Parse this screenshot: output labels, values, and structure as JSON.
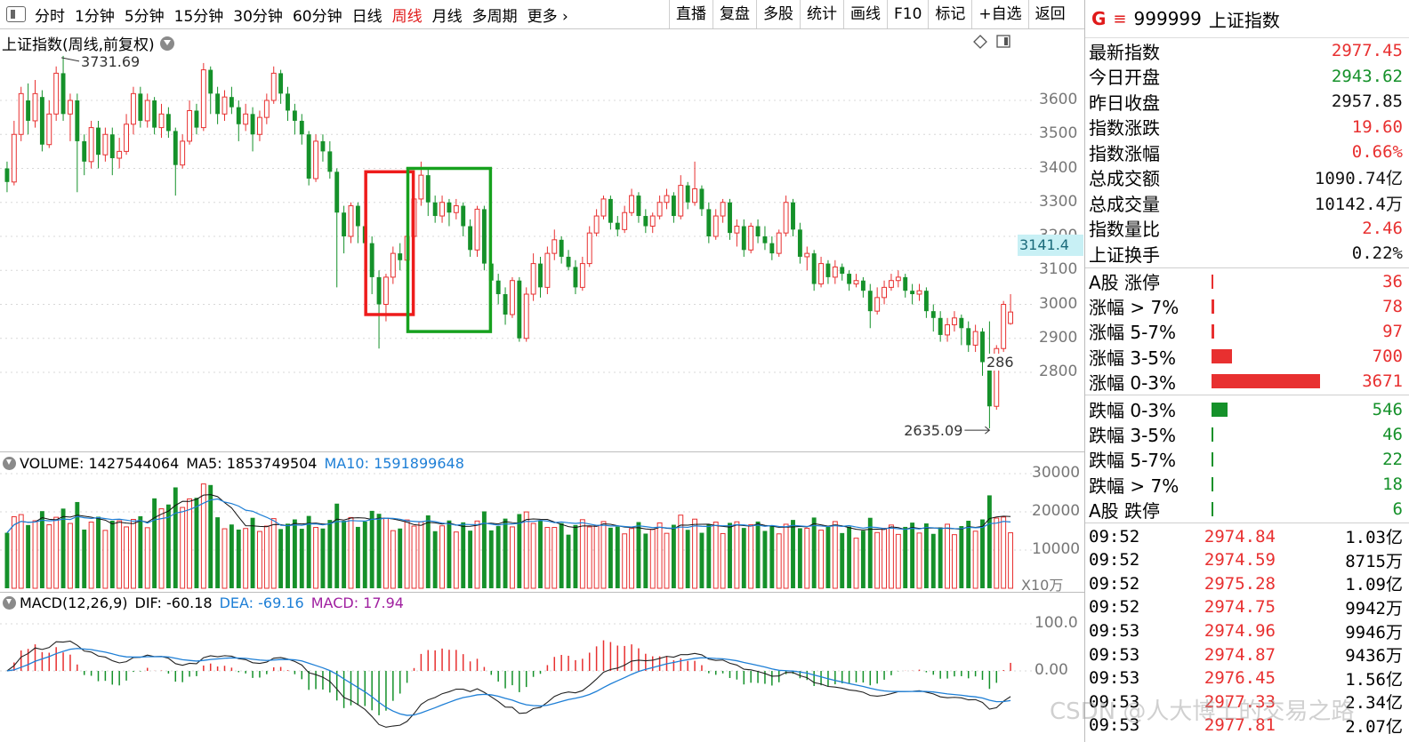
{
  "toolbar": {
    "periods": [
      "分时",
      "1分钟",
      "5分钟",
      "15分钟",
      "30分钟",
      "60分钟",
      "日线",
      "周线",
      "月线",
      "多周期",
      "更多"
    ],
    "active_period": "周线",
    "buttons": [
      "直播",
      "复盘",
      "多股",
      "统计",
      "画线",
      "F10",
      "标记",
      "+自选",
      "返回"
    ]
  },
  "chart_title": "上证指数(周线,前复权)",
  "price_axis": {
    "ticks": [
      "3600",
      "3500",
      "3400",
      "3300",
      "3200",
      "3100",
      "3000",
      "2900",
      "2800"
    ]
  },
  "current_price_tag": "3141.4",
  "partial_price_label": "286",
  "high_marker": "3731.69",
  "low_marker": "2635.09",
  "volume_header": {
    "volume_label": "VOLUME: 1427544064",
    "ma5_label": "MA5: 1853749504",
    "ma10_label": "MA10: 1591899648"
  },
  "volume_axis": {
    "ticks": [
      "30000",
      "20000",
      "10000"
    ],
    "unit": "X10万"
  },
  "macd_header": {
    "params": "MACD(12,26,9)",
    "dif": "DIF: -60.18",
    "dea": "DEA: -69.16",
    "macd": "MACD: 17.94"
  },
  "macd_axis": {
    "ticks": [
      "100.0",
      "0.00"
    ]
  },
  "quote": {
    "header": {
      "g_label": "G",
      "code": "999999",
      "name": "上证指数"
    },
    "rows": [
      {
        "label": "最新指数",
        "value": "2977.45",
        "color": "#e83030"
      },
      {
        "label": "今日开盘",
        "value": "2943.62",
        "color": "#15912a"
      },
      {
        "label": "昨日收盘",
        "value": "2957.85",
        "color": "#111111"
      },
      {
        "label": "指数涨跌",
        "value": "19.60",
        "color": "#e83030"
      },
      {
        "label": "指数涨幅",
        "value": "0.66%",
        "color": "#e83030"
      },
      {
        "label": "总成交额",
        "value": "1090.74亿",
        "color": "#111111"
      },
      {
        "label": "总成交量",
        "value": "10142.4万",
        "color": "#111111"
      },
      {
        "label": "指数量比",
        "value": "2.46",
        "color": "#e83030"
      },
      {
        "label": "上证换手",
        "value": "0.22%",
        "color": "#111111"
      }
    ]
  },
  "breadth_up": [
    {
      "label": "A股 涨停",
      "value": "36",
      "share": 0.01
    },
    {
      "label": "涨幅 > 7%",
      "value": "78",
      "share": 0.021
    },
    {
      "label": "涨幅 5-7%",
      "value": "97",
      "share": 0.026
    },
    {
      "label": "涨幅 3-5%",
      "value": "700",
      "share": 0.19
    },
    {
      "label": "涨幅 0-3%",
      "value": "3671",
      "share": 1.0
    }
  ],
  "breadth_down": [
    {
      "label": "跌幅 0-3%",
      "value": "546",
      "share": 0.149
    },
    {
      "label": "跌幅 3-5%",
      "value": "46",
      "share": 0.013
    },
    {
      "label": "跌幅 5-7%",
      "value": "22",
      "share": 0.006
    },
    {
      "label": "跌幅 > 7%",
      "value": "18",
      "share": 0.005
    },
    {
      "label": "A股 跌停",
      "value": "6",
      "share": 0.002
    }
  ],
  "ticks": [
    {
      "time": "09:52",
      "price": "2974.84",
      "vol": "1.03亿"
    },
    {
      "time": "09:52",
      "price": "2974.59",
      "vol": "8715万"
    },
    {
      "time": "09:52",
      "price": "2975.28",
      "vol": "1.09亿"
    },
    {
      "time": "09:52",
      "price": "2974.75",
      "vol": "9942万"
    },
    {
      "time": "09:53",
      "price": "2974.96",
      "vol": "9946万"
    },
    {
      "time": "09:53",
      "price": "2974.87",
      "vol": "9436万"
    },
    {
      "time": "09:53",
      "price": "2976.45",
      "vol": "1.56亿"
    },
    {
      "time": "09:53",
      "price": "2977.33",
      "vol": "2.34亿"
    },
    {
      "time": "09:53",
      "price": "2977.81",
      "vol": "2.07亿"
    }
  ],
  "watermark": "CSDN @人大博士的交易之路",
  "colors": {
    "up": "#e83030",
    "down": "#15912a",
    "ma5": "#111111",
    "ma10": "#1e7fd6",
    "highlight_red": "#ee1c1c",
    "highlight_green": "#17a11e"
  },
  "chart_data": {
    "type": "candlestick",
    "y_range": [
      2635.09,
      3731.69
    ],
    "candles": [
      {
        "o": 3400,
        "c": 3360,
        "h": 3420,
        "l": 3330
      },
      {
        "o": 3360,
        "c": 3500,
        "h": 3540,
        "l": 3350
      },
      {
        "o": 3500,
        "c": 3620,
        "h": 3640,
        "l": 3480
      },
      {
        "o": 3600,
        "c": 3540,
        "h": 3650,
        "l": 3500
      },
      {
        "o": 3540,
        "c": 3620,
        "h": 3660,
        "l": 3520
      },
      {
        "o": 3610,
        "c": 3470,
        "h": 3630,
        "l": 3450
      },
      {
        "o": 3470,
        "c": 3560,
        "h": 3600,
        "l": 3460
      },
      {
        "o": 3560,
        "c": 3680,
        "h": 3700,
        "l": 3540
      },
      {
        "o": 3680,
        "c": 3560,
        "h": 3731,
        "l": 3540
      },
      {
        "o": 3560,
        "c": 3600,
        "h": 3620,
        "l": 3480
      },
      {
        "o": 3600,
        "c": 3480,
        "h": 3620,
        "l": 3330
      },
      {
        "o": 3480,
        "c": 3420,
        "h": 3500,
        "l": 3380
      },
      {
        "o": 3420,
        "c": 3520,
        "h": 3540,
        "l": 3400
      },
      {
        "o": 3520,
        "c": 3440,
        "h": 3540,
        "l": 3400
      },
      {
        "o": 3440,
        "c": 3500,
        "h": 3520,
        "l": 3420
      },
      {
        "o": 3500,
        "c": 3430,
        "h": 3520,
        "l": 3380
      },
      {
        "o": 3430,
        "c": 3450,
        "h": 3490,
        "l": 3400
      },
      {
        "o": 3450,
        "c": 3530,
        "h": 3560,
        "l": 3440
      },
      {
        "o": 3530,
        "c": 3620,
        "h": 3640,
        "l": 3500
      },
      {
        "o": 3620,
        "c": 3540,
        "h": 3640,
        "l": 3520
      },
      {
        "o": 3540,
        "c": 3600,
        "h": 3620,
        "l": 3520
      },
      {
        "o": 3600,
        "c": 3520,
        "h": 3610,
        "l": 3500
      },
      {
        "o": 3520,
        "c": 3560,
        "h": 3590,
        "l": 3490
      },
      {
        "o": 3560,
        "c": 3510,
        "h": 3580,
        "l": 3490
      },
      {
        "o": 3510,
        "c": 3410,
        "h": 3520,
        "l": 3320
      },
      {
        "o": 3410,
        "c": 3480,
        "h": 3500,
        "l": 3400
      },
      {
        "o": 3480,
        "c": 3570,
        "h": 3600,
        "l": 3470
      },
      {
        "o": 3570,
        "c": 3520,
        "h": 3590,
        "l": 3500
      },
      {
        "o": 3520,
        "c": 3690,
        "h": 3710,
        "l": 3510
      },
      {
        "o": 3690,
        "c": 3620,
        "h": 3700,
        "l": 3560
      },
      {
        "o": 3620,
        "c": 3560,
        "h": 3640,
        "l": 3530
      },
      {
        "o": 3560,
        "c": 3610,
        "h": 3630,
        "l": 3540
      },
      {
        "o": 3610,
        "c": 3580,
        "h": 3640,
        "l": 3560
      },
      {
        "o": 3580,
        "c": 3530,
        "h": 3600,
        "l": 3480
      },
      {
        "o": 3530,
        "c": 3560,
        "h": 3590,
        "l": 3510
      },
      {
        "o": 3560,
        "c": 3500,
        "h": 3580,
        "l": 3450
      },
      {
        "o": 3500,
        "c": 3550,
        "h": 3570,
        "l": 3480
      },
      {
        "o": 3550,
        "c": 3600,
        "h": 3620,
        "l": 3530
      },
      {
        "o": 3600,
        "c": 3680,
        "h": 3700,
        "l": 3590
      },
      {
        "o": 3680,
        "c": 3620,
        "h": 3690,
        "l": 3590
      },
      {
        "o": 3620,
        "c": 3570,
        "h": 3640,
        "l": 3540
      },
      {
        "o": 3570,
        "c": 3540,
        "h": 3590,
        "l": 3500
      },
      {
        "o": 3540,
        "c": 3500,
        "h": 3560,
        "l": 3470
      },
      {
        "o": 3500,
        "c": 3370,
        "h": 3510,
        "l": 3350
      },
      {
        "o": 3370,
        "c": 3480,
        "h": 3500,
        "l": 3360
      },
      {
        "o": 3480,
        "c": 3450,
        "h": 3500,
        "l": 3420
      },
      {
        "o": 3450,
        "c": 3390,
        "h": 3480,
        "l": 3370
      },
      {
        "o": 3390,
        "c": 3270,
        "h": 3400,
        "l": 3050
      },
      {
        "o": 3270,
        "c": 3200,
        "h": 3290,
        "l": 3150
      },
      {
        "o": 3200,
        "c": 3290,
        "h": 3300,
        "l": 3180
      },
      {
        "o": 3290,
        "c": 3230,
        "h": 3300,
        "l": 3180
      },
      {
        "o": 3230,
        "c": 3180,
        "h": 3270,
        "l": 3150
      },
      {
        "o": 3180,
        "c": 3080,
        "h": 3200,
        "l": 3030
      },
      {
        "o": 3080,
        "c": 3000,
        "h": 3100,
        "l": 2870
      },
      {
        "o": 3000,
        "c": 3080,
        "h": 3090,
        "l": 2950
      },
      {
        "o": 3080,
        "c": 3150,
        "h": 3170,
        "l": 3060
      },
      {
        "o": 3150,
        "c": 3130,
        "h": 3180,
        "l": 3100
      },
      {
        "o": 3130,
        "c": 3200,
        "h": 3220,
        "l": 3110
      },
      {
        "o": 3200,
        "c": 3310,
        "h": 3330,
        "l": 3190
      },
      {
        "o": 3310,
        "c": 3380,
        "h": 3420,
        "l": 3290
      },
      {
        "o": 3380,
        "c": 3300,
        "h": 3400,
        "l": 3260
      },
      {
        "o": 3300,
        "c": 3260,
        "h": 3320,
        "l": 3240
      },
      {
        "o": 3260,
        "c": 3300,
        "h": 3320,
        "l": 3240
      },
      {
        "o": 3300,
        "c": 3270,
        "h": 3310,
        "l": 3230
      },
      {
        "o": 3270,
        "c": 3290,
        "h": 3310,
        "l": 3250
      },
      {
        "o": 3290,
        "c": 3230,
        "h": 3300,
        "l": 3200
      },
      {
        "o": 3230,
        "c": 3160,
        "h": 3250,
        "l": 3140
      },
      {
        "o": 3160,
        "c": 3280,
        "h": 3290,
        "l": 3140
      },
      {
        "o": 3280,
        "c": 3120,
        "h": 3290,
        "l": 3100
      },
      {
        "o": 3120,
        "c": 3070,
        "h": 3140,
        "l": 3040
      },
      {
        "o": 3070,
        "c": 3030,
        "h": 3090,
        "l": 3000
      },
      {
        "o": 3030,
        "c": 2970,
        "h": 3050,
        "l": 2940
      },
      {
        "o": 2970,
        "c": 3070,
        "h": 3080,
        "l": 2960
      },
      {
        "o": 3070,
        "c": 2900,
        "h": 3080,
        "l": 2890
      },
      {
        "o": 2900,
        "c": 3030,
        "h": 3050,
        "l": 2890
      },
      {
        "o": 3030,
        "c": 3120,
        "h": 3150,
        "l": 3010
      },
      {
        "o": 3120,
        "c": 3050,
        "h": 3140,
        "l": 3020
      },
      {
        "o": 3050,
        "c": 3150,
        "h": 3170,
        "l": 3030
      },
      {
        "o": 3150,
        "c": 3190,
        "h": 3220,
        "l": 3130
      },
      {
        "o": 3190,
        "c": 3140,
        "h": 3200,
        "l": 3120
      },
      {
        "o": 3140,
        "c": 3110,
        "h": 3160,
        "l": 3100
      },
      {
        "o": 3110,
        "c": 3050,
        "h": 3130,
        "l": 3030
      },
      {
        "o": 3050,
        "c": 3120,
        "h": 3140,
        "l": 3040
      },
      {
        "o": 3120,
        "c": 3210,
        "h": 3230,
        "l": 3110
      },
      {
        "o": 3210,
        "c": 3260,
        "h": 3280,
        "l": 3200
      },
      {
        "o": 3260,
        "c": 3310,
        "h": 3320,
        "l": 3250
      },
      {
        "o": 3310,
        "c": 3240,
        "h": 3320,
        "l": 3220
      },
      {
        "o": 3240,
        "c": 3220,
        "h": 3260,
        "l": 3200
      },
      {
        "o": 3220,
        "c": 3270,
        "h": 3290,
        "l": 3210
      },
      {
        "o": 3270,
        "c": 3320,
        "h": 3340,
        "l": 3260
      },
      {
        "o": 3320,
        "c": 3260,
        "h": 3330,
        "l": 3240
      },
      {
        "o": 3260,
        "c": 3230,
        "h": 3280,
        "l": 3210
      },
      {
        "o": 3230,
        "c": 3260,
        "h": 3270,
        "l": 3210
      },
      {
        "o": 3260,
        "c": 3300,
        "h": 3320,
        "l": 3250
      },
      {
        "o": 3300,
        "c": 3320,
        "h": 3340,
        "l": 3280
      },
      {
        "o": 3320,
        "c": 3260,
        "h": 3330,
        "l": 3240
      },
      {
        "o": 3260,
        "c": 3350,
        "h": 3380,
        "l": 3250
      },
      {
        "o": 3350,
        "c": 3300,
        "h": 3360,
        "l": 3280
      },
      {
        "o": 3300,
        "c": 3340,
        "h": 3420,
        "l": 3290
      },
      {
        "o": 3340,
        "c": 3280,
        "h": 3350,
        "l": 3260
      },
      {
        "o": 3280,
        "c": 3200,
        "h": 3300,
        "l": 3180
      },
      {
        "o": 3200,
        "c": 3260,
        "h": 3280,
        "l": 3190
      },
      {
        "o": 3260,
        "c": 3300,
        "h": 3310,
        "l": 3240
      },
      {
        "o": 3300,
        "c": 3210,
        "h": 3310,
        "l": 3190
      },
      {
        "o": 3210,
        "c": 3230,
        "h": 3250,
        "l": 3170
      },
      {
        "o": 3230,
        "c": 3160,
        "h": 3250,
        "l": 3140
      },
      {
        "o": 3160,
        "c": 3230,
        "h": 3240,
        "l": 3150
      },
      {
        "o": 3230,
        "c": 3200,
        "h": 3250,
        "l": 3180
      },
      {
        "o": 3200,
        "c": 3180,
        "h": 3230,
        "l": 3160
      },
      {
        "o": 3180,
        "c": 3150,
        "h": 3200,
        "l": 3130
      },
      {
        "o": 3150,
        "c": 3210,
        "h": 3220,
        "l": 3140
      },
      {
        "o": 3210,
        "c": 3300,
        "h": 3320,
        "l": 3200
      },
      {
        "o": 3300,
        "c": 3220,
        "h": 3310,
        "l": 3200
      },
      {
        "o": 3220,
        "c": 3140,
        "h": 3240,
        "l": 3120
      },
      {
        "o": 3140,
        "c": 3150,
        "h": 3170,
        "l": 3100
      },
      {
        "o": 3150,
        "c": 3060,
        "h": 3160,
        "l": 3040
      },
      {
        "o": 3060,
        "c": 3120,
        "h": 3140,
        "l": 3050
      },
      {
        "o": 3120,
        "c": 3080,
        "h": 3130,
        "l": 3060
      },
      {
        "o": 3080,
        "c": 3110,
        "h": 3130,
        "l": 3060
      },
      {
        "o": 3110,
        "c": 3090,
        "h": 3120,
        "l": 3070
      },
      {
        "o": 3090,
        "c": 3060,
        "h": 3100,
        "l": 3040
      },
      {
        "o": 3060,
        "c": 3070,
        "h": 3090,
        "l": 3050
      },
      {
        "o": 3070,
        "c": 3040,
        "h": 3080,
        "l": 3020
      },
      {
        "o": 3040,
        "c": 2980,
        "h": 3060,
        "l": 2930
      },
      {
        "o": 2980,
        "c": 3020,
        "h": 3050,
        "l": 2970
      },
      {
        "o": 3020,
        "c": 3050,
        "h": 3070,
        "l": 3000
      },
      {
        "o": 3050,
        "c": 3070,
        "h": 3090,
        "l": 3040
      },
      {
        "o": 3070,
        "c": 3080,
        "h": 3100,
        "l": 3050
      },
      {
        "o": 3080,
        "c": 3040,
        "h": 3090,
        "l": 3020
      },
      {
        "o": 3040,
        "c": 3030,
        "h": 3060,
        "l": 3000
      },
      {
        "o": 3030,
        "c": 3040,
        "h": 3060,
        "l": 3010
      },
      {
        "o": 3040,
        "c": 2980,
        "h": 3050,
        "l": 2960
      },
      {
        "o": 2980,
        "c": 2960,
        "h": 3000,
        "l": 2920
      },
      {
        "o": 2960,
        "c": 2910,
        "h": 2980,
        "l": 2890
      },
      {
        "o": 2910,
        "c": 2940,
        "h": 2960,
        "l": 2890
      },
      {
        "o": 2940,
        "c": 2960,
        "h": 2980,
        "l": 2920
      },
      {
        "o": 2960,
        "c": 2930,
        "h": 2970,
        "l": 2880
      },
      {
        "o": 2930,
        "c": 2880,
        "h": 2950,
        "l": 2860
      },
      {
        "o": 2880,
        "c": 2920,
        "h": 2940,
        "l": 2860
      },
      {
        "o": 2920,
        "c": 2830,
        "h": 2930,
        "l": 2790
      },
      {
        "o": 2830,
        "c": 2700,
        "h": 2950,
        "l": 2635.09
      },
      {
        "o": 2700,
        "c": 2870,
        "h": 2880,
        "l": 2690
      },
      {
        "o": 2870,
        "c": 3000,
        "h": 3010,
        "l": 2860
      },
      {
        "o": 2943.62,
        "c": 2977.45,
        "h": 3030,
        "l": 2940
      }
    ]
  }
}
